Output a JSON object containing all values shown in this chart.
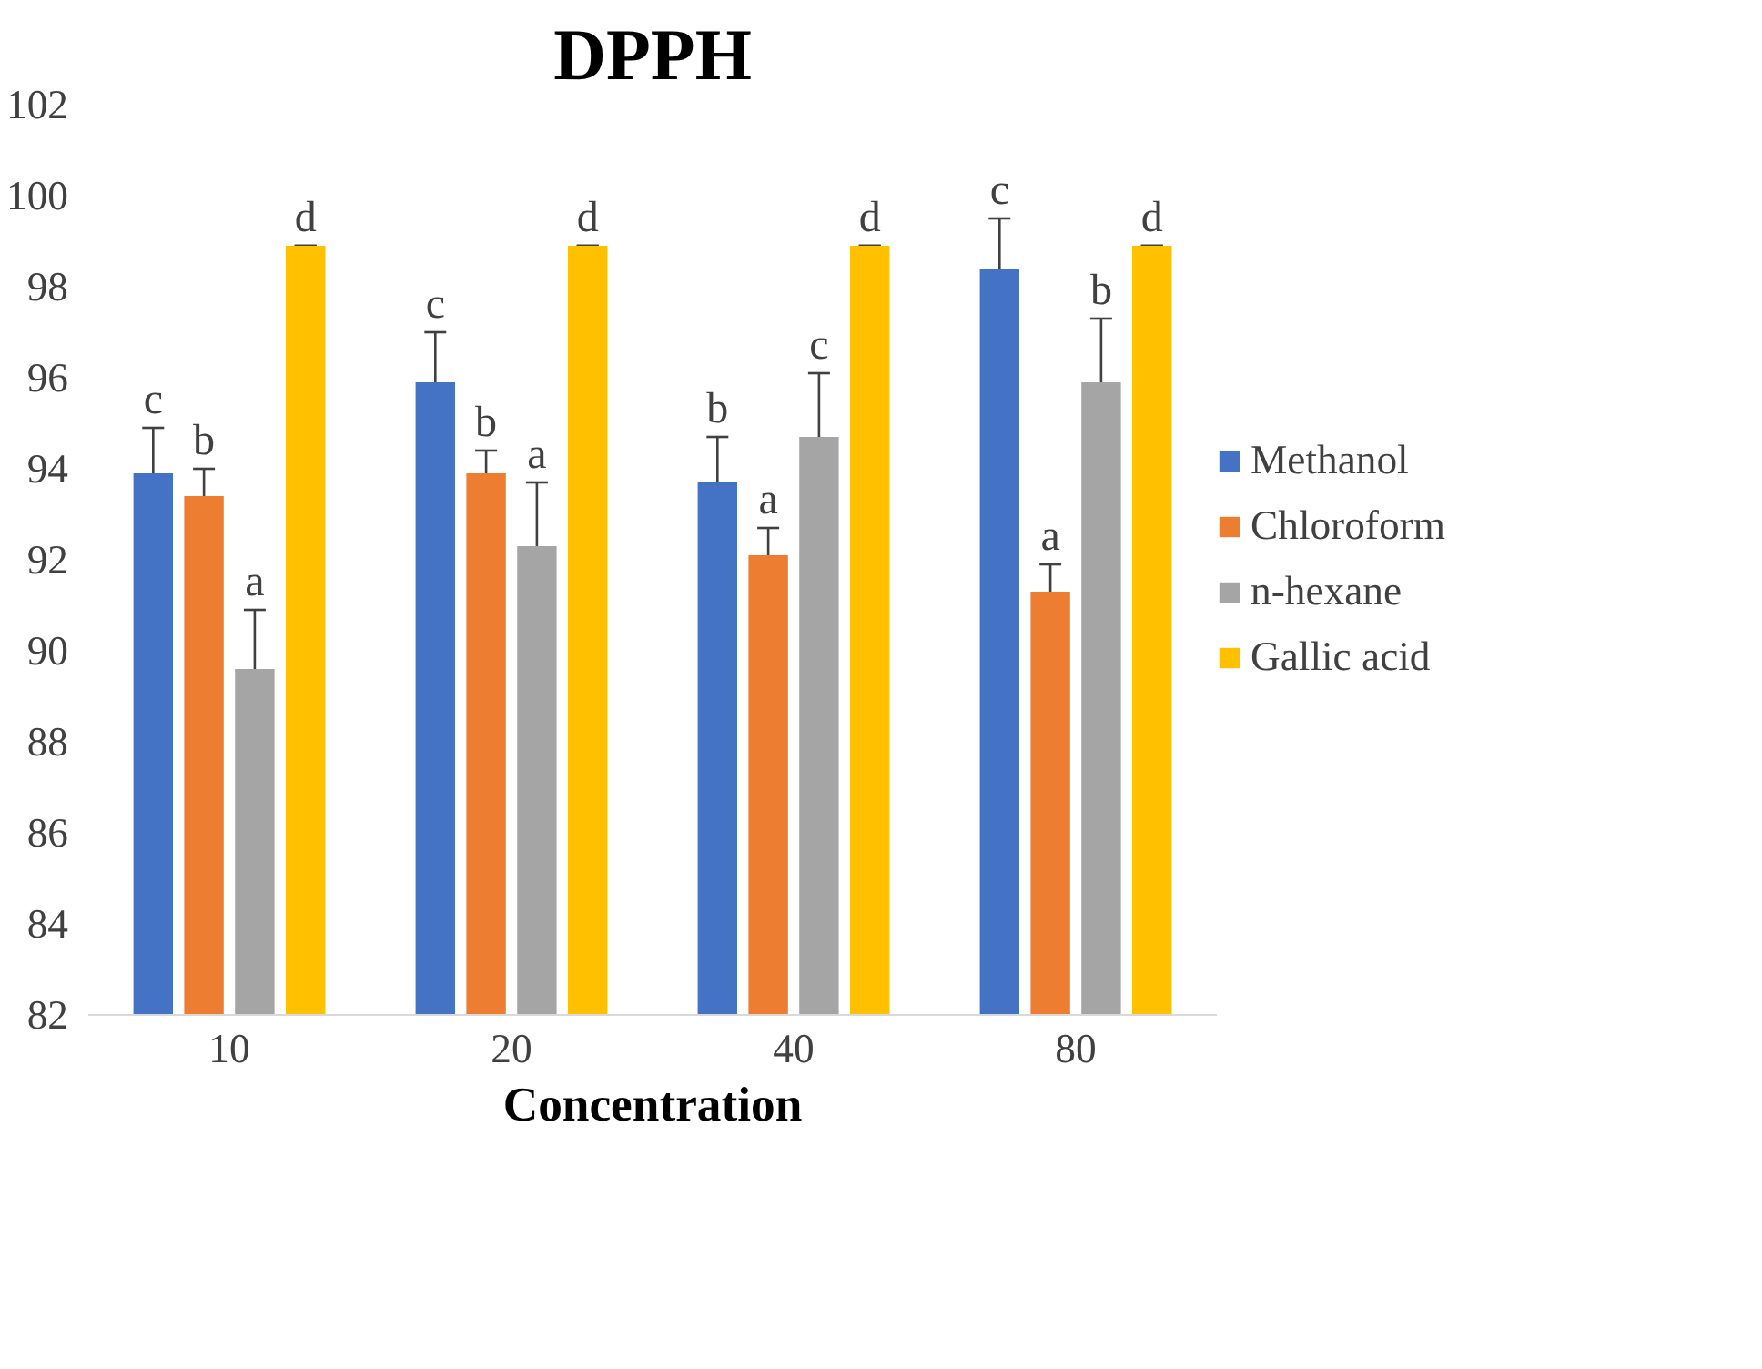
{
  "chart_data": {
    "type": "bar",
    "title": "DPPH",
    "xlabel": "Concentration",
    "categories": [
      "10",
      "20",
      "40",
      "80"
    ],
    "series": [
      {
        "name": "Methanol",
        "color": "#4472c4",
        "values": [
          93.9,
          95.9,
          93.7,
          98.4
        ],
        "errors": [
          1.0,
          1.1,
          1.0,
          1.1
        ],
        "value_labels": [
          "c",
          "c",
          "b",
          "c"
        ]
      },
      {
        "name": "Chloroform",
        "color": "#ed7d31",
        "values": [
          93.4,
          93.9,
          92.1,
          91.3
        ],
        "errors": [
          0.6,
          0.5,
          0.6,
          0.6
        ],
        "value_labels": [
          "b",
          "b",
          "a",
          "a"
        ]
      },
      {
        "name": "n-hexane",
        "color": "#a5a5a5",
        "values": [
          89.6,
          92.3,
          94.7,
          95.9
        ],
        "errors": [
          1.3,
          1.4,
          1.4,
          1.4
        ],
        "value_labels": [
          "a",
          "a",
          "c",
          "b"
        ]
      },
      {
        "name": "Gallic acid",
        "color": "#ffc000",
        "values": [
          98.9,
          98.9,
          98.9,
          98.9
        ],
        "errors": [
          0,
          0,
          0,
          0
        ],
        "value_labels": [
          "d",
          "d",
          "d",
          "d"
        ]
      }
    ],
    "ylim": [
      82,
      102
    ],
    "yticks": [
      82,
      84,
      86,
      88,
      90,
      92,
      94,
      96,
      98,
      100,
      102
    ],
    "grid": false,
    "legend": "right"
  }
}
